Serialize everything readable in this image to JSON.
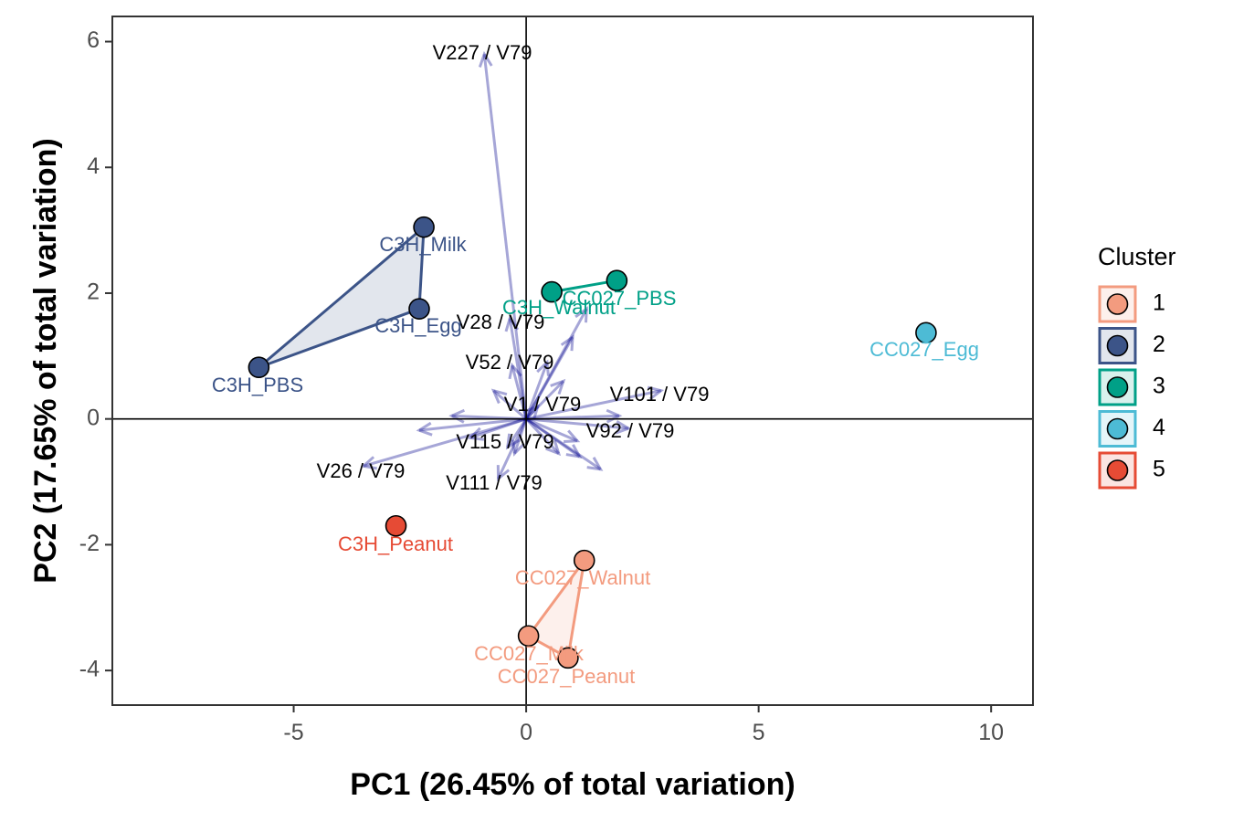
{
  "chart_data": {
    "type": "scatter",
    "xlabel": "PC1 (26.45% of total variation)",
    "ylabel": "PC2 (17.65% of total variation)",
    "xlim": [
      -8.9,
      10.9
    ],
    "ylim": [
      -4.55,
      6.4
    ],
    "xticks": [
      -5,
      0,
      5,
      10
    ],
    "xtick_labels": [
      "-5",
      "0",
      "5",
      "10"
    ],
    "yticks": [
      -4,
      -2,
      0,
      2,
      4,
      6
    ],
    "ytick_labels": [
      "-4",
      "-2",
      "0",
      "2",
      "4",
      "6"
    ],
    "grid": false,
    "reference_lines": {
      "x": 0,
      "y": 0
    },
    "legend": {
      "title": "Cluster",
      "placement": "right",
      "entries": [
        {
          "label": "1",
          "color": "#F39B7F"
        },
        {
          "label": "2",
          "color": "#3C5488"
        },
        {
          "label": "3",
          "color": "#00A087"
        },
        {
          "label": "4",
          "color": "#4DBBD5"
        },
        {
          "label": "5",
          "color": "#E64B35"
        }
      ]
    },
    "points": [
      {
        "label": "C3H_Milk",
        "x": -2.2,
        "y": 3.05,
        "cluster": "2"
      },
      {
        "label": "C3H_Egg",
        "x": -2.3,
        "y": 1.75,
        "cluster": "2"
      },
      {
        "label": "C3H_PBS",
        "x": -5.75,
        "y": 0.82,
        "cluster": "2"
      },
      {
        "label": "C3H_Walnut",
        "x": 0.55,
        "y": 2.02,
        "cluster": "3"
      },
      {
        "label": "CC027_PBS",
        "x": 1.95,
        "y": 2.2,
        "cluster": "3"
      },
      {
        "label": "CC027_Egg",
        "x": 8.6,
        "y": 1.37,
        "cluster": "4"
      },
      {
        "label": "C3H_Peanut",
        "x": -2.8,
        "y": -1.7,
        "cluster": "5"
      },
      {
        "label": "CC027_Walnut",
        "x": 1.25,
        "y": -2.25,
        "cluster": "1"
      },
      {
        "label": "CC027_Milk",
        "x": 0.05,
        "y": -3.45,
        "cluster": "1"
      },
      {
        "label": "CC027_Peanut",
        "x": 0.9,
        "y": -3.8,
        "cluster": "1"
      }
    ],
    "hulls": [
      {
        "cluster": "2",
        "members": [
          "C3H_Milk",
          "C3H_Egg",
          "C3H_PBS"
        ]
      },
      {
        "cluster": "3",
        "members": [
          "C3H_Walnut",
          "CC027_PBS"
        ]
      },
      {
        "cluster": "1",
        "members": [
          "CC027_Walnut",
          "CC027_Peanut",
          "CC027_Milk"
        ]
      }
    ],
    "arrow_color": "#00008B",
    "loadings": [
      {
        "label": "V227 / V79",
        "x": -0.9,
        "y": 5.8,
        "text": true
      },
      {
        "label": "V28 / V79",
        "x": -0.35,
        "y": 1.6,
        "text": true
      },
      {
        "label": "V52 / V79",
        "x": -0.3,
        "y": 0.85,
        "text": true
      },
      {
        "label": "V101 / V79",
        "x": 2.9,
        "y": 0.45,
        "text": true
      },
      {
        "label": "V1 / V79",
        "x": 0.25,
        "y": 0.2,
        "text": true
      },
      {
        "label": "V92 / V79",
        "x": 2.2,
        "y": -0.15,
        "text": true
      },
      {
        "label": "V115 / V79",
        "x": -0.4,
        "y": -0.45,
        "text": true
      },
      {
        "label": "V26 / V79",
        "x": -3.5,
        "y": -0.75,
        "text": true
      },
      {
        "label": "V111 / V79",
        "x": -0.6,
        "y": -0.95,
        "text": true
      },
      {
        "x": 1.3,
        "y": 1.75,
        "text": false
      },
      {
        "x": 1.0,
        "y": 1.3,
        "text": false
      },
      {
        "x": 0.45,
        "y": 0.9,
        "text": false
      },
      {
        "x": -0.7,
        "y": 0.45,
        "text": false
      },
      {
        "x": 0.8,
        "y": 0.6,
        "text": false
      },
      {
        "x": -2.3,
        "y": -0.18,
        "text": false
      },
      {
        "x": -1.6,
        "y": 0.05,
        "text": false
      },
      {
        "x": 1.1,
        "y": -0.35,
        "text": false
      },
      {
        "x": 1.6,
        "y": -0.8,
        "text": false
      },
      {
        "x": 1.15,
        "y": -0.6,
        "text": false
      },
      {
        "x": 0.7,
        "y": -0.55,
        "text": false
      },
      {
        "x": -0.25,
        "y": -0.55,
        "text": false
      },
      {
        "x": 2.0,
        "y": 0.05,
        "text": false
      },
      {
        "x": -1.2,
        "y": -0.3,
        "text": false
      }
    ]
  }
}
